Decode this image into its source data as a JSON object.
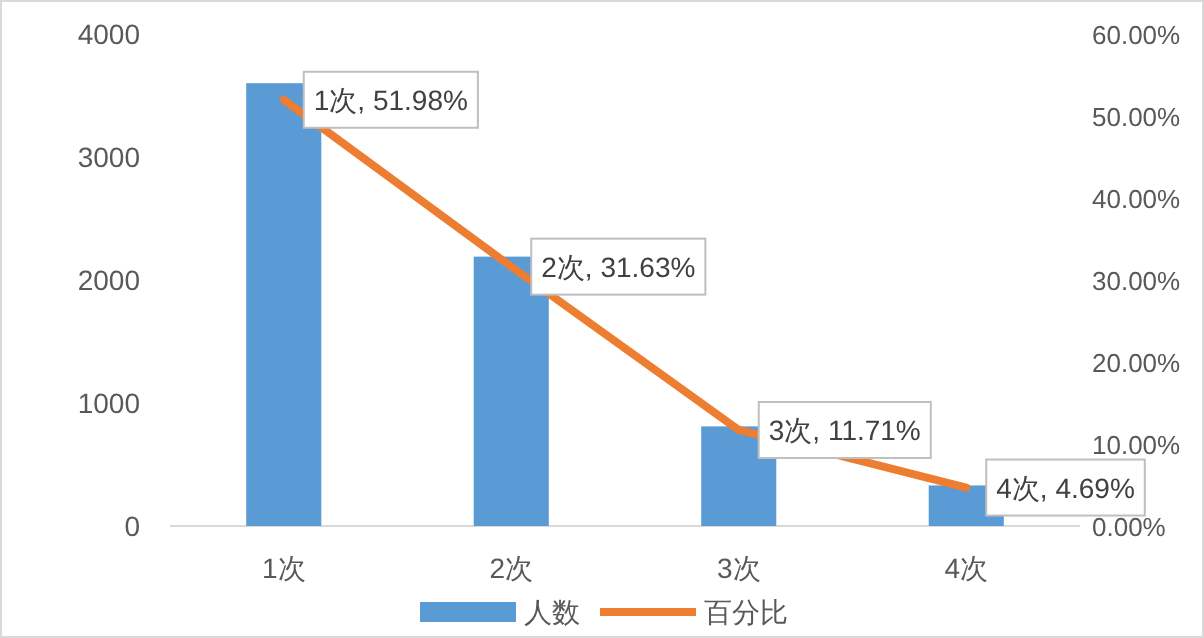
{
  "chart_data": {
    "type": "bar",
    "categories": [
      "1次",
      "2次",
      "3次",
      "4次"
    ],
    "series": [
      {
        "name": "人数",
        "color": "#5b9bd5",
        "values": [
          3600,
          2190,
          810,
          330
        ]
      },
      {
        "name": "百分比",
        "type": "line",
        "axis": "y2",
        "color": "#ed7d31",
        "values": [
          51.98,
          31.63,
          11.71,
          4.69
        ],
        "value_labels": [
          "1次, 51.98%",
          "2次, 31.63%",
          "3次, 11.71%",
          "4次, 4.69%"
        ]
      }
    ],
    "ylim": [
      0,
      4000
    ],
    "yticks": [
      0,
      1000,
      2000,
      3000,
      4000
    ],
    "y2lim": [
      0,
      60
    ],
    "y2ticks": [
      {
        "value": 0,
        "label": "0.00%"
      },
      {
        "value": 10,
        "label": "10.00%"
      },
      {
        "value": 20,
        "label": "20.00%"
      },
      {
        "value": 30,
        "label": "30.00%"
      },
      {
        "value": 40,
        "label": "40.00%"
      },
      {
        "value": 50,
        "label": "50.00%"
      },
      {
        "value": 60,
        "label": "60.00%"
      }
    ],
    "legend": "bottom",
    "grid": false
  }
}
